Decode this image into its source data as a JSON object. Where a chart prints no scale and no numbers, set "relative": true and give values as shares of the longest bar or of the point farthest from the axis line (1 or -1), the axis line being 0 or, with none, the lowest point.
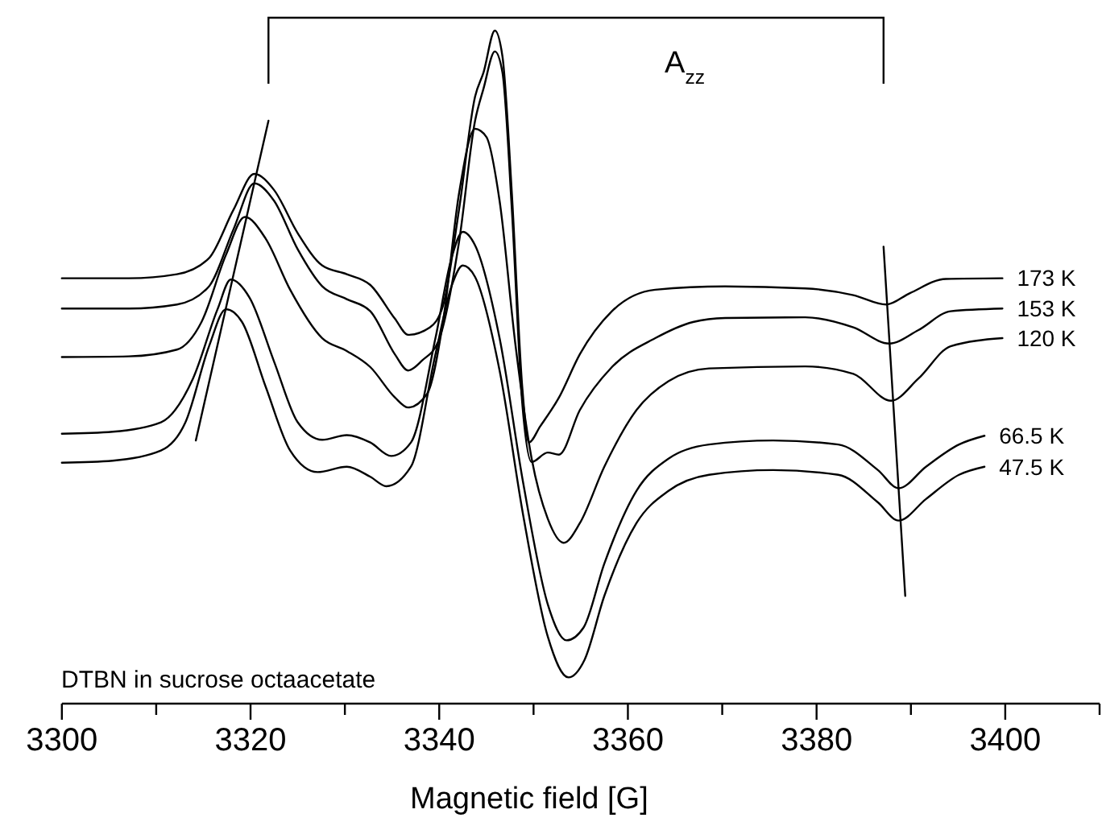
{
  "chart_data": {
    "type": "line",
    "relative": true,
    "xlabel": "Magnetic field [G]",
    "xlim": [
      3300,
      3410
    ],
    "xticks": [
      3300,
      {
        "value": 3310,
        "label": null
      },
      3320,
      {
        "value": 3330,
        "label": null
      },
      3340,
      {
        "value": 3350,
        "label": null
      },
      3360,
      {
        "value": 3370,
        "label": null
      },
      3380,
      {
        "value": 3390,
        "label": null
      },
      3400,
      {
        "value": 3410,
        "label": null
      }
    ],
    "annotations": [
      "A$_{zz}$",
      "DTBN in sucrose octaacetate"
    ],
    "series": [
      {
        "name": "173 K",
        "color": "#000000",
        "x": [
          3300,
          3307.1,
          3312.2,
          3315.6,
          3318.2,
          3320.4,
          3322.5,
          3325.0,
          3327.6,
          3330.2,
          3332.7,
          3335.3,
          3336.7,
          3339.0,
          3340.4,
          3342.1,
          3343.8,
          3344.7,
          3345.9,
          3346.7,
          3347.7,
          3348.8,
          3349.5,
          3350.7,
          3352.7,
          3354.9,
          3358.3,
          3362.9,
          3370.3,
          3378.8,
          3383.9,
          3387.4,
          3389.9,
          3393.7,
          3399.7
        ],
        "values": [
          0.632,
          0.632,
          0.638,
          0.662,
          0.734,
          0.787,
          0.763,
          0.699,
          0.651,
          0.638,
          0.622,
          0.572,
          0.548,
          0.559,
          0.591,
          0.734,
          0.902,
          0.938,
          1.0,
          0.962,
          0.758,
          0.471,
          0.388,
          0.412,
          0.455,
          0.519,
          0.583,
          0.615,
          0.62,
          0.617,
          0.607,
          0.593,
          0.61,
          0.631,
          0.632
        ]
      },
      {
        "name": "153 K",
        "color": "#000000",
        "x": [
          3300,
          3307.1,
          3312.2,
          3315.6,
          3318.2,
          3320.4,
          3322.5,
          3325.0,
          3327.6,
          3330.2,
          3332.7,
          3335.3,
          3336.7,
          3338.2,
          3339.9,
          3342.1,
          3343.8,
          3344.7,
          3345.9,
          3346.7,
          3347.7,
          3348.8,
          3349.8,
          3351.5,
          3352.7,
          3354.9,
          3358.3,
          3362.9,
          3366.9,
          3370.3,
          3378.8,
          3383.9,
          3387.7,
          3390.8,
          3394.2,
          3399.7
        ],
        "values": [
          0.587,
          0.587,
          0.593,
          0.62,
          0.705,
          0.773,
          0.747,
          0.675,
          0.62,
          0.601,
          0.583,
          0.519,
          0.495,
          0.51,
          0.538,
          0.686,
          0.866,
          0.914,
          0.969,
          0.938,
          0.734,
          0.447,
          0.359,
          0.373,
          0.37,
          0.436,
          0.5,
          0.543,
          0.567,
          0.573,
          0.574,
          0.559,
          0.535,
          0.555,
          0.583,
          0.587
        ]
      },
      {
        "name": "120 K",
        "color": "#000000",
        "x": [
          3300,
          3307.1,
          3312.2,
          3314.8,
          3317.4,
          3319.4,
          3321.6,
          3324.2,
          3327.6,
          3330.2,
          3332.7,
          3335.3,
          3336.7,
          3338.7,
          3340.4,
          3342.1,
          3343.8,
          3345.0,
          3346.4,
          3348.1,
          3349.8,
          3351.5,
          3353.2,
          3354.9,
          3357.5,
          3360.9,
          3364.3,
          3368.6,
          3378.8,
          3383.9,
          3387.9,
          3390.8,
          3394.2,
          3399.7
        ],
        "values": [
          0.515,
          0.516,
          0.526,
          0.567,
          0.667,
          0.723,
          0.691,
          0.615,
          0.543,
          0.524,
          0.5,
          0.455,
          0.44,
          0.46,
          0.567,
          0.758,
          0.854,
          0.842,
          0.747,
          0.531,
          0.364,
          0.275,
          0.239,
          0.268,
          0.352,
          0.436,
          0.479,
          0.498,
          0.501,
          0.49,
          0.45,
          0.483,
          0.531,
          0.543
        ]
      },
      {
        "name": "66.5 K",
        "color": "#000000",
        "x": [
          3300,
          3305.4,
          3310.5,
          3313.9,
          3316.5,
          3317.9,
          3319.9,
          3322.5,
          3325.0,
          3327.6,
          3330.2,
          3332.7,
          3334.9,
          3337.0,
          3339.6,
          3341.3,
          3342.5,
          3343.8,
          3346.4,
          3348.9,
          3351.5,
          3353.5,
          3355.3,
          3357.5,
          3360.9,
          3364.3,
          3368.6,
          3375.4,
          3382.3,
          3386.5,
          3388.7,
          3391.6,
          3395.1,
          3397.8
        ],
        "values": [
          0.401,
          0.404,
          0.418,
          0.483,
          0.586,
          0.63,
          0.603,
          0.508,
          0.418,
          0.392,
          0.399,
          0.388,
          0.368,
          0.388,
          0.543,
          0.662,
          0.701,
          0.681,
          0.543,
          0.328,
          0.148,
          0.094,
          0.113,
          0.208,
          0.316,
          0.364,
          0.385,
          0.391,
          0.385,
          0.347,
          0.32,
          0.352,
          0.385,
          0.398
        ]
      },
      {
        "name": "47.5 K",
        "color": "#000000",
        "x": [
          3300,
          3305.4,
          3310.5,
          3313.1,
          3315.6,
          3317.4,
          3319.1,
          3321.6,
          3324.2,
          3327.1,
          3330.2,
          3332.7,
          3334.4,
          3337.0,
          3339.6,
          3341.3,
          3342.5,
          3343.8,
          3346.4,
          3348.9,
          3351.5,
          3353.7,
          3355.4,
          3357.5,
          3360.9,
          3364.3,
          3368.6,
          3375.4,
          3382.3,
          3386.5,
          3388.7,
          3391.6,
          3395.1,
          3397.8
        ],
        "values": [
          0.358,
          0.361,
          0.376,
          0.418,
          0.531,
          0.586,
          0.567,
          0.471,
          0.376,
          0.344,
          0.352,
          0.337,
          0.323,
          0.352,
          0.519,
          0.62,
          0.651,
          0.634,
          0.495,
          0.28,
          0.1,
          0.039,
          0.065,
          0.16,
          0.268,
          0.316,
          0.34,
          0.347,
          0.34,
          0.299,
          0.272,
          0.304,
          0.34,
          0.352
        ]
      },
      {
        "color": "#000000",
        "x": [
          3314.2,
          3321.9
        ],
        "values": [
          0.391,
          0.866
        ]
      },
      {
        "color": "#000000",
        "x": [
          3387.1,
          3389.4
        ],
        "values": [
          0.679,
          0.16
        ]
      }
    ]
  }
}
